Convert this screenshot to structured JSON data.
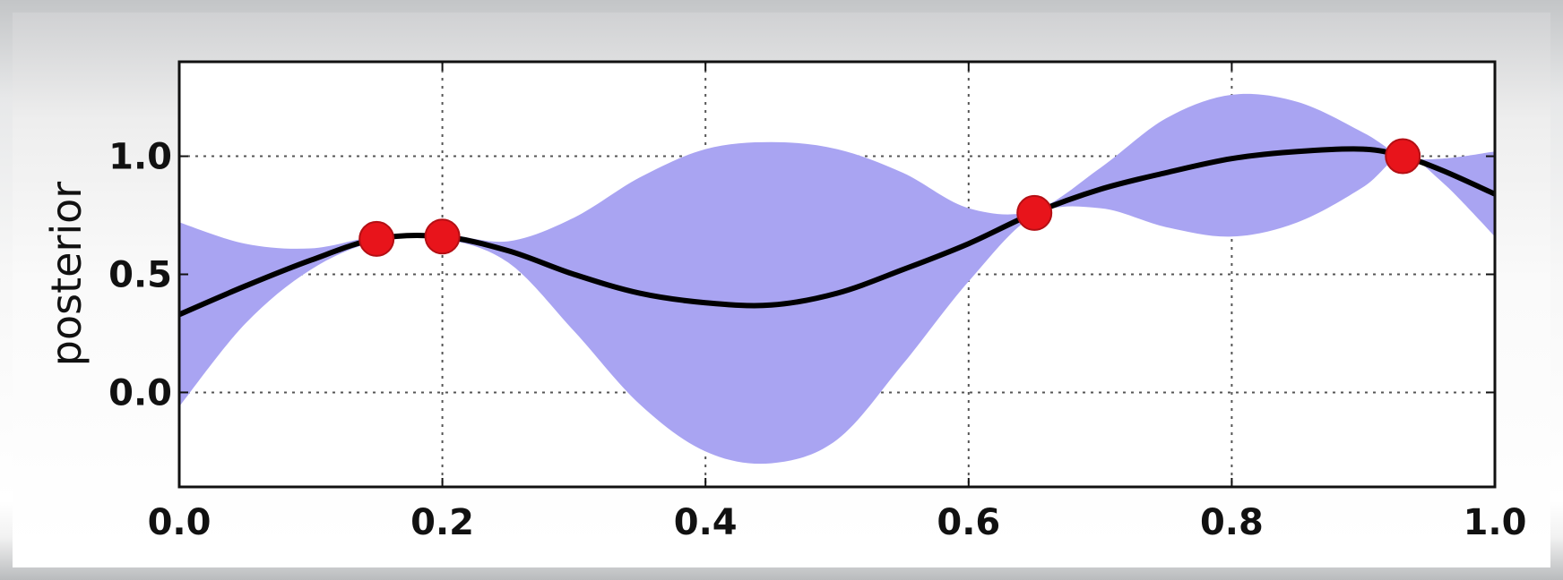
{
  "chart_data": {
    "type": "line",
    "xlabel": "",
    "ylabel": "posterior",
    "xlim": [
      0.0,
      1.0
    ],
    "ylim": [
      -0.4,
      1.4
    ],
    "grid": true,
    "x_ticks": [
      "0.0",
      "0.2",
      "0.4",
      "0.6",
      "0.8",
      "1.0"
    ],
    "y_ticks": [
      "0.0",
      "0.5",
      "1.0"
    ],
    "x_tick_values": [
      0.0,
      0.2,
      0.4,
      0.6,
      0.8,
      1.0
    ],
    "y_tick_values": [
      0.0,
      0.5,
      1.0
    ],
    "colors": {
      "mean": "#000000",
      "band": "#a9a4f2",
      "points": "#e8141b",
      "grid": "#555555"
    },
    "mean": {
      "x": [
        0.0,
        0.05,
        0.1,
        0.15,
        0.2,
        0.25,
        0.3,
        0.35,
        0.4,
        0.45,
        0.5,
        0.55,
        0.6,
        0.65,
        0.7,
        0.75,
        0.8,
        0.85,
        0.9,
        0.93,
        0.96,
        1.0
      ],
      "y": [
        0.33,
        0.45,
        0.56,
        0.65,
        0.66,
        0.6,
        0.5,
        0.42,
        0.38,
        0.37,
        0.42,
        0.52,
        0.63,
        0.76,
        0.86,
        0.93,
        0.99,
        1.02,
        1.03,
        1.0,
        0.94,
        0.84
      ]
    },
    "band": {
      "x": [
        0.0,
        0.05,
        0.1,
        0.15,
        0.2,
        0.25,
        0.3,
        0.35,
        0.4,
        0.45,
        0.5,
        0.55,
        0.6,
        0.65,
        0.7,
        0.75,
        0.8,
        0.85,
        0.9,
        0.93,
        0.96,
        1.0
      ],
      "upper": [
        0.72,
        0.63,
        0.61,
        0.66,
        0.67,
        0.64,
        0.74,
        0.91,
        1.03,
        1.06,
        1.03,
        0.93,
        0.78,
        0.77,
        0.95,
        1.16,
        1.26,
        1.23,
        1.1,
        1.0,
        0.99,
        1.02
      ],
      "lower": [
        -0.06,
        0.29,
        0.52,
        0.64,
        0.65,
        0.55,
        0.26,
        -0.05,
        -0.25,
        -0.3,
        -0.2,
        0.12,
        0.47,
        0.75,
        0.78,
        0.7,
        0.66,
        0.72,
        0.87,
        1.0,
        0.89,
        0.66
      ]
    },
    "observations": {
      "x": [
        0.15,
        0.2,
        0.65,
        0.93
      ],
      "y": [
        0.65,
        0.66,
        0.76,
        1.0
      ]
    }
  }
}
